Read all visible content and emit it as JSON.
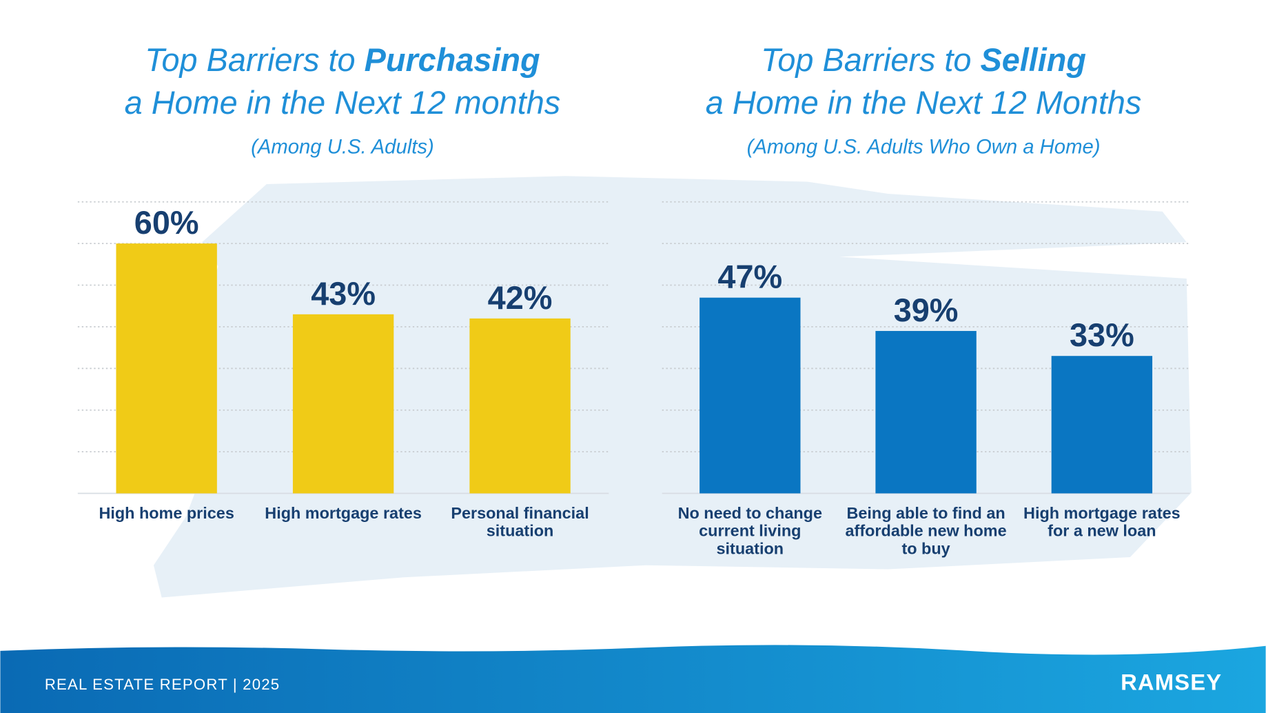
{
  "chart_data": [
    {
      "type": "bar",
      "title": {
        "lead": "Top Barriers to",
        "emphasis": "Purchasing",
        "rest": "a Home in the Next 12 months"
      },
      "subtitle": "(Among U.S. Adults)",
      "categories": [
        "High home prices",
        "High mortgage rates",
        "Personal financial situation"
      ],
      "values": [
        60,
        43,
        42
      ],
      "value_labels": [
        "60%",
        "43%",
        "42%"
      ],
      "color": "#f0cb17",
      "ylim": [
        0,
        70
      ],
      "yticks": [
        0,
        10,
        20,
        30,
        40,
        50,
        60,
        70
      ],
      "grid": true
    },
    {
      "type": "bar",
      "title": {
        "lead": "Top Barriers to",
        "emphasis": "Selling",
        "rest": "a Home in the Next 12 Months"
      },
      "subtitle": "(Among U.S. Adults Who Own a Home)",
      "categories": [
        "No need to change current living situation",
        "Being able to find an affordable new home to buy",
        "High mortgage rates for a new loan"
      ],
      "values": [
        47,
        39,
        33
      ],
      "value_labels": [
        "47%",
        "39%",
        "33%"
      ],
      "color": "#0a76c2",
      "ylim": [
        0,
        70
      ],
      "yticks": [
        0,
        10,
        20,
        30,
        40,
        50,
        60,
        70
      ],
      "grid": true
    }
  ],
  "footer": {
    "report": "REAL ESTATE REPORT | 2025",
    "brand": "RAMSEY"
  }
}
